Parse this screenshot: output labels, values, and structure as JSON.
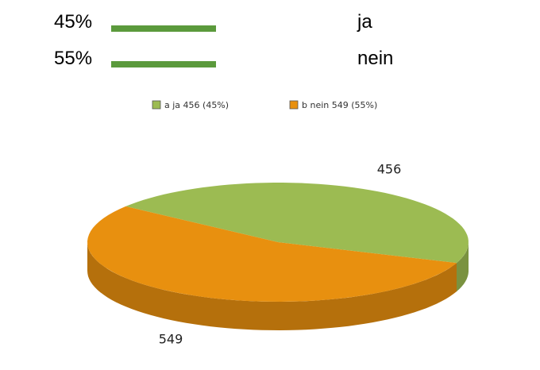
{
  "poll": {
    "rows": [
      {
        "percent": "45%",
        "answer": "ja"
      },
      {
        "percent": "55%",
        "answer": "nein"
      }
    ]
  },
  "chart_data": {
    "type": "pie",
    "categories": [
      "a ja 456 (45%)",
      "b nein 549 (55%)"
    ],
    "values": [
      456,
      549
    ],
    "colors": [
      "#9cbb52",
      "#e8900f"
    ],
    "legend": "top"
  }
}
